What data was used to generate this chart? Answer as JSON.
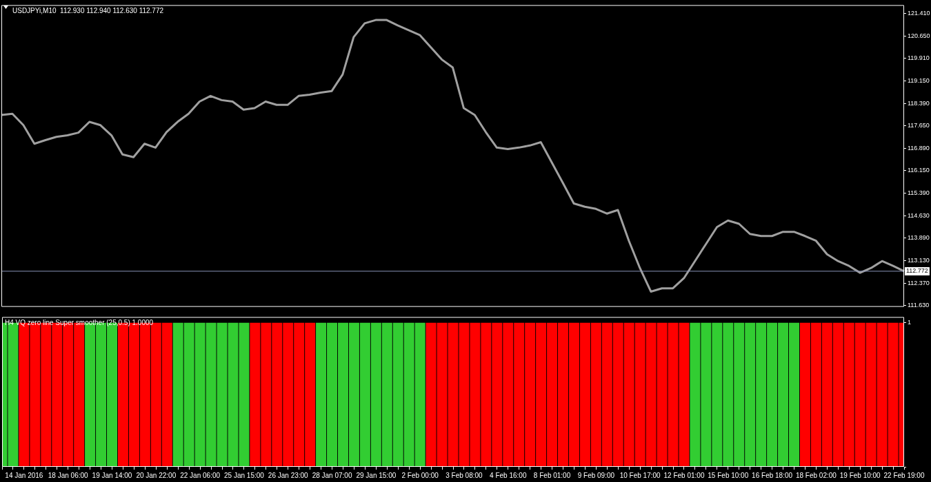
{
  "chart_data": [
    {
      "type": "line",
      "title": "USDJPYi,M10  112.930 112.940 112.630 112.772",
      "categories": [
        null,
        null,
        null,
        null,
        null,
        null,
        null,
        null,
        null,
        null,
        null,
        null,
        null,
        null,
        null,
        null,
        null,
        null,
        null,
        null,
        null,
        null,
        null,
        null,
        null,
        null,
        null,
        null,
        null,
        null,
        null,
        null,
        null,
        null,
        null,
        null,
        null,
        null,
        null,
        null,
        null,
        null,
        null,
        null,
        null,
        null,
        null,
        null,
        null,
        null,
        null,
        null,
        null,
        null,
        null,
        null,
        null,
        null,
        null,
        null,
        null,
        null,
        null,
        null,
        null,
        null,
        null,
        null,
        null,
        null,
        null,
        null,
        null,
        null,
        null,
        null,
        null,
        null,
        null,
        null,
        null,
        null,
        null
      ],
      "series": [
        {
          "color": "#a0a0a0",
          "values": [
            118.0,
            118.04,
            117.66,
            117.04,
            117.16,
            117.27,
            117.32,
            117.41,
            117.77,
            117.66,
            117.32,
            116.68,
            116.59,
            117.04,
            116.91,
            117.43,
            117.77,
            118.04,
            118.45,
            118.64,
            118.5,
            118.45,
            118.18,
            118.23,
            118.45,
            118.34,
            118.34,
            118.64,
            118.68,
            118.75,
            118.8,
            119.36,
            120.61,
            121.07,
            121.18,
            121.18,
            121.0,
            120.84,
            120.68,
            120.27,
            119.86,
            119.59,
            118.23,
            118.0,
            117.43,
            116.91,
            116.86,
            116.91,
            116.98,
            117.09,
            116.41,
            115.73,
            115.04,
            114.93,
            114.86,
            114.7,
            114.82,
            113.79,
            112.88,
            112.09,
            112.2,
            112.2,
            112.54,
            113.11,
            113.68,
            114.25,
            114.47,
            114.36,
            114.02,
            113.95,
            113.95,
            114.09,
            114.09,
            113.95,
            113.79,
            113.34,
            113.11,
            112.95,
            112.72,
            112.88,
            113.11,
            112.95,
            112.77
          ]
        }
      ],
      "ylim": [
        111.58,
        121.68
      ],
      "yticks": [
        {
          "value": 111.63,
          "label": "111.630"
        },
        {
          "value": 112.37,
          "label": "112.370"
        },
        {
          "value": 113.13,
          "label": "113.130"
        },
        {
          "value": 113.89,
          "label": "113.890"
        },
        {
          "value": 114.63,
          "label": "114.630"
        },
        {
          "value": 115.39,
          "label": "115.390"
        },
        {
          "value": 116.15,
          "label": "116.150"
        },
        {
          "value": 116.89,
          "label": "116.890"
        },
        {
          "value": 117.65,
          "label": "117.650"
        },
        {
          "value": 118.39,
          "label": "118.390"
        },
        {
          "value": 119.15,
          "label": "119.150"
        },
        {
          "value": 119.91,
          "label": "119.910"
        },
        {
          "value": 120.65,
          "label": "120.650"
        },
        {
          "value": 121.41,
          "label": "121.410"
        }
      ],
      "ref_lines": [
        {
          "axis": "y",
          "value": 112.772,
          "label": "112.772",
          "color": "#8a94b8"
        }
      ],
      "tick_labels": "y",
      "marker": "none",
      "legend": false,
      "grid": false
    },
    {
      "type": "bar",
      "title": "H4 VQ zero line Super smoother (25,0.5) 1.0000",
      "categories": [
        null,
        null,
        "14 Jan 2016",
        null,
        null,
        null,
        "18 Jan 06:00",
        null,
        null,
        null,
        "19 Jan 14:00",
        null,
        null,
        null,
        "20 Jan 22:00",
        null,
        null,
        null,
        "22 Jan 06:00",
        null,
        null,
        null,
        "25 Jan 15:00",
        null,
        null,
        null,
        "26 Jan 23:00",
        null,
        null,
        null,
        "28 Jan 07:00",
        null,
        null,
        null,
        "29 Jan 15:00",
        null,
        null,
        null,
        "2 Feb 00:00",
        null,
        null,
        null,
        "3 Feb 08:00",
        null,
        null,
        null,
        "4 Feb 16:00",
        null,
        null,
        null,
        "8 Feb 01:00",
        null,
        null,
        null,
        "9 Feb 09:00",
        null,
        null,
        null,
        "10 Feb 17:00",
        null,
        null,
        null,
        "12 Feb 01:00",
        null,
        null,
        null,
        "15 Feb 10:00",
        null,
        null,
        null,
        "16 Feb 18:00",
        null,
        null,
        null,
        "18 Feb 02:00",
        null,
        null,
        null,
        "19 Feb 10:00",
        null,
        null,
        null,
        "22 Feb 19:00"
      ],
      "values": [
        1,
        1,
        1,
        1,
        1,
        1,
        1,
        1,
        1,
        1,
        1,
        1,
        1,
        1,
        1,
        1,
        1,
        1,
        1,
        1,
        1,
        1,
        1,
        1,
        1,
        1,
        1,
        1,
        1,
        1,
        1,
        1,
        1,
        1,
        1,
        1,
        1,
        1,
        1,
        1,
        1,
        1,
        1,
        1,
        1,
        1,
        1,
        1,
        1,
        1,
        1,
        1,
        1,
        1,
        1,
        1,
        1,
        1,
        1,
        1,
        1,
        1,
        1,
        1,
        1,
        1,
        1,
        1,
        1,
        1,
        1,
        1,
        1,
        1,
        1,
        1,
        1,
        1,
        1,
        1,
        1,
        1,
        1
      ],
      "colors": [
        "#32cd32",
        "#32cd32",
        "#ff0000",
        "#ff0000",
        "#ff0000",
        "#ff0000",
        "#ff0000",
        "#ff0000",
        "#32cd32",
        "#32cd32",
        "#32cd32",
        "#ff0000",
        "#ff0000",
        "#ff0000",
        "#ff0000",
        "#ff0000",
        "#32cd32",
        "#32cd32",
        "#32cd32",
        "#32cd32",
        "#32cd32",
        "#32cd32",
        "#32cd32",
        "#ff0000",
        "#ff0000",
        "#ff0000",
        "#ff0000",
        "#ff0000",
        "#ff0000",
        "#32cd32",
        "#32cd32",
        "#32cd32",
        "#32cd32",
        "#32cd32",
        "#32cd32",
        "#32cd32",
        "#32cd32",
        "#32cd32",
        "#32cd32",
        "#ff0000",
        "#ff0000",
        "#ff0000",
        "#ff0000",
        "#ff0000",
        "#ff0000",
        "#ff0000",
        "#ff0000",
        "#ff0000",
        "#ff0000",
        "#ff0000",
        "#ff0000",
        "#ff0000",
        "#ff0000",
        "#ff0000",
        "#ff0000",
        "#ff0000",
        "#ff0000",
        "#ff0000",
        "#ff0000",
        "#ff0000",
        "#ff0000",
        "#ff0000",
        "#ff0000",
        "#32cd32",
        "#32cd32",
        "#32cd32",
        "#32cd32",
        "#32cd32",
        "#32cd32",
        "#32cd32",
        "#32cd32",
        "#32cd32",
        "#32cd32",
        "#ff0000",
        "#ff0000",
        "#ff0000",
        "#ff0000",
        "#ff0000",
        "#ff0000",
        "#ff0000",
        "#ff0000",
        "#ff0000",
        "#ff0000"
      ],
      "ylim": [
        0,
        1.04
      ],
      "yticks": [
        0,
        1
      ],
      "legend": false
    }
  ]
}
